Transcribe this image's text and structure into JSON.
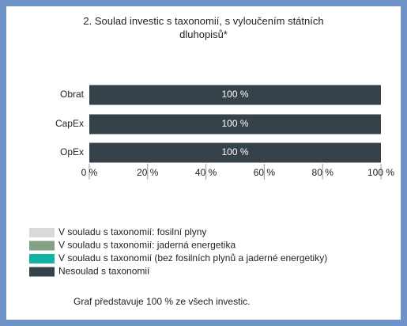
{
  "chart_data": {
    "type": "stacked_barh",
    "title": "2. Soulad investic s taxonomií, s vyloučením státních dluhopisů*",
    "categories": [
      "Obrat",
      "CapEx",
      "OpEx"
    ],
    "series": [
      {
        "name": "V souladu s taxonomií: fosilní plyny",
        "color": "#d9d9d9",
        "values": [
          0,
          0,
          0
        ]
      },
      {
        "name": "V souladu s taxonomií: jaderná energetika",
        "color": "#84a086",
        "values": [
          0,
          0,
          0
        ]
      },
      {
        "name": "V souladu s taxonomií (bez fosilních plynů a jaderné energetiky)",
        "color": "#12b3a5",
        "values": [
          0,
          0,
          0
        ]
      },
      {
        "name": "Nesoulad s taxonomií",
        "color": "#364249",
        "values": [
          100,
          100,
          100
        ],
        "value_labels": [
          "100 %",
          "100 %",
          "100 %"
        ]
      }
    ],
    "xlim": [
      0,
      100
    ],
    "xticks": [
      {
        "value": 0,
        "label": "0 %"
      },
      {
        "value": 20,
        "label": "20 %"
      },
      {
        "value": 40,
        "label": "40 %"
      },
      {
        "value": 60,
        "label": "60 %"
      },
      {
        "value": 80,
        "label": "80 %"
      },
      {
        "value": 100,
        "label": "100 %"
      }
    ],
    "legend": "bottom-left",
    "note": "Graf představuje 100 % ze všech investic."
  }
}
